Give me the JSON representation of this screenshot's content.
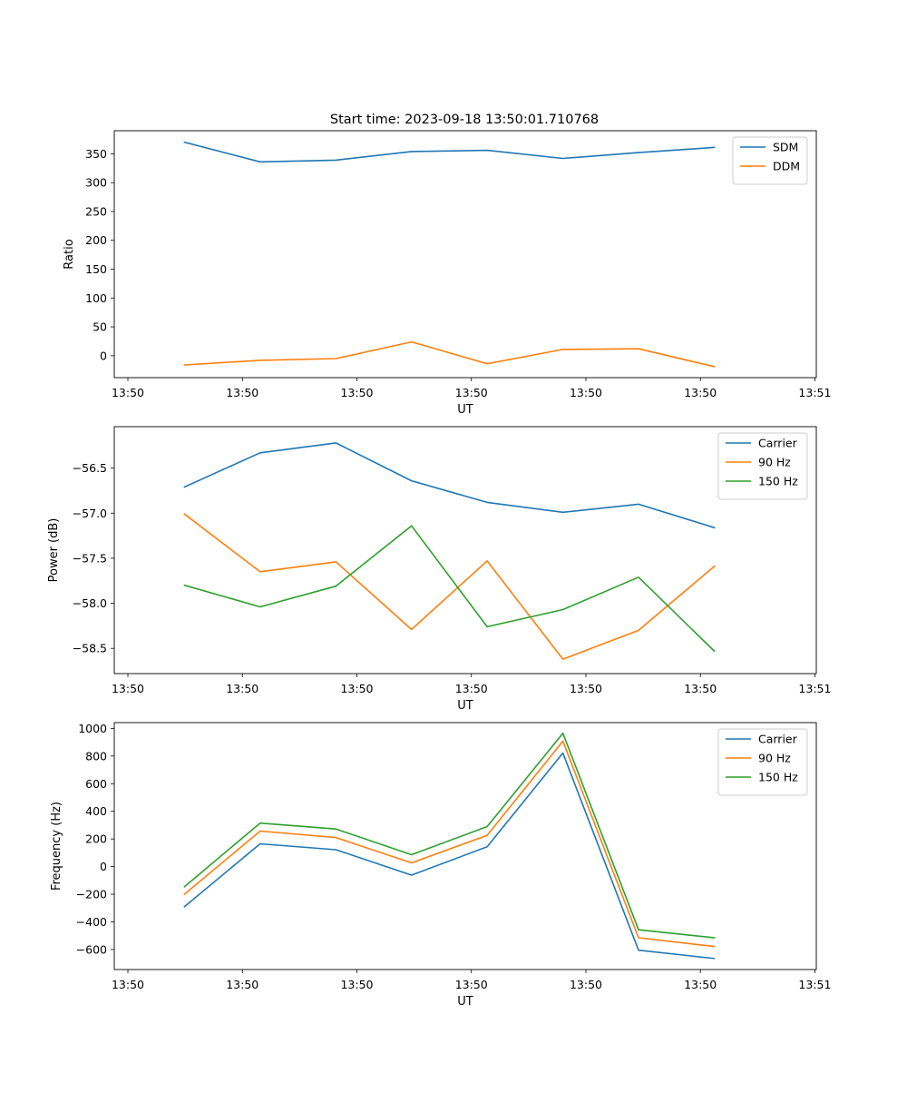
{
  "figure_title": "Start time: 2023-09-18 13:50:01.710768",
  "colors": {
    "blue": "#1f77b4",
    "orange": "#ff7f0e",
    "green": "#2ca02c"
  },
  "chart_data": [
    {
      "type": "line",
      "title": "Start time: 2023-09-18 13:50:01.710768",
      "xlabel": "UT",
      "ylabel": "Ratio",
      "x_tick_labels": [
        "13:50",
        "13:50",
        "13:50",
        "13:50",
        "13:50",
        "13:50",
        "13:51"
      ],
      "y_ticks": [
        0,
        50,
        100,
        150,
        200,
        250,
        300,
        350
      ],
      "ylim": [
        -38,
        390
      ],
      "legend_position": "top-right",
      "series": [
        {
          "name": "SDM",
          "color": "#1f77b4",
          "values": [
            370,
            336,
            339,
            354,
            356,
            342,
            352,
            361
          ]
        },
        {
          "name": "DDM",
          "color": "#ff7f0e",
          "values": [
            -16,
            -8,
            -5,
            24,
            -14,
            11,
            12,
            -19
          ]
        }
      ]
    },
    {
      "type": "line",
      "title": "",
      "xlabel": "UT",
      "ylabel": "Power (dB)",
      "x_tick_labels": [
        "13:50",
        "13:50",
        "13:50",
        "13:50",
        "13:50",
        "13:50",
        "13:51"
      ],
      "y_ticks": [
        -58.5,
        -58.0,
        -57.5,
        -57.0,
        -56.5
      ],
      "y_tick_labels": [
        "−58.5",
        "−58.0",
        "−57.5",
        "−57.0",
        "−56.5"
      ],
      "ylim": [
        -58.78,
        -56.04
      ],
      "legend_position": "top-right",
      "series": [
        {
          "name": "Carrier",
          "color": "#1f77b4",
          "values": [
            -56.71,
            -56.33,
            -56.22,
            -56.64,
            -56.88,
            -56.99,
            -56.9,
            -57.16
          ]
        },
        {
          "name": "90 Hz",
          "color": "#ff7f0e",
          "values": [
            -57.01,
            -57.65,
            -57.54,
            -58.29,
            -57.53,
            -58.62,
            -58.3,
            -57.59
          ]
        },
        {
          "name": "150 Hz",
          "color": "#2ca02c",
          "values": [
            -57.8,
            -58.04,
            -57.81,
            -57.14,
            -58.26,
            -58.07,
            -57.71,
            -58.53
          ]
        }
      ]
    },
    {
      "type": "line",
      "title": "",
      "xlabel": "UT",
      "ylabel": "Frequency (Hz)",
      "x_tick_labels": [
        "13:50",
        "13:50",
        "13:50",
        "13:50",
        "13:50",
        "13:50",
        "13:51"
      ],
      "y_ticks": [
        -600,
        -400,
        -200,
        0,
        200,
        400,
        600,
        800,
        1000
      ],
      "y_tick_labels": [
        "−600",
        "−400",
        "−200",
        "0",
        "200",
        "400",
        "600",
        "800",
        "1000"
      ],
      "ylim": [
        -745,
        1042
      ],
      "legend_position": "top-right",
      "series": [
        {
          "name": "Carrier",
          "color": "#1f77b4",
          "values": [
            -290,
            165,
            122,
            -62,
            143,
            822,
            -605,
            -665
          ]
        },
        {
          "name": "90 Hz",
          "color": "#ff7f0e",
          "values": [
            -200,
            257,
            210,
            27,
            226,
            908,
            -515,
            -578
          ]
        },
        {
          "name": "150 Hz",
          "color": "#2ca02c",
          "values": [
            -145,
            315,
            272,
            86,
            290,
            965,
            -457,
            -515
          ]
        }
      ]
    }
  ]
}
